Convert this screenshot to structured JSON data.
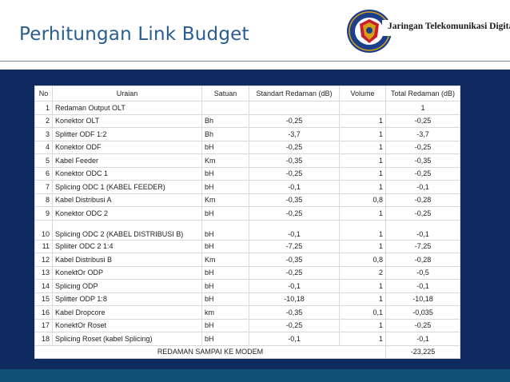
{
  "slide": {
    "title": "Perhitungan Link Budget",
    "brand_text": "Jaringan Telekomunikasi Digital"
  },
  "table": {
    "headers": [
      "No",
      "Uraian",
      "Satuan",
      "Standart Redaman (dB)",
      "Volume",
      "Total Redaman (dB)"
    ],
    "rows": [
      {
        "no": "1",
        "uraian": "Redaman Output OLT",
        "satuan": "",
        "standart": "",
        "volume": "",
        "total": "1"
      },
      {
        "no": "2",
        "uraian": "Konektor OLT",
        "satuan": "Bh",
        "standart": "-0,25",
        "volume": "1",
        "total": "-0,25"
      },
      {
        "no": "3",
        "uraian": "Splitter ODF 1:2",
        "satuan": "Bh",
        "standart": "-3,7",
        "volume": "1",
        "total": "-3,7"
      },
      {
        "no": "4",
        "uraian": "Konektor ODF",
        "satuan": "bH",
        "standart": "-0,25",
        "volume": "1",
        "total": "-0,25"
      },
      {
        "no": "5",
        "uraian": "Kabel Feeder",
        "satuan": "Km",
        "standart": "-0,35",
        "volume": "1",
        "total": "-0,35"
      },
      {
        "no": "6",
        "uraian": "Konektor ODC 1",
        "satuan": "bH",
        "standart": "-0,25",
        "volume": "1",
        "total": "-0,25"
      },
      {
        "no": "7",
        "uraian": "Splicing ODC 1 (KABEL FEEDER)",
        "satuan": "bH",
        "standart": "-0,1",
        "volume": "1",
        "total": "-0,1"
      },
      {
        "no": "8",
        "uraian": "Kabel Distribusi A",
        "satuan": "Km",
        "standart": "-0,35",
        "volume": "0,8",
        "total": "-0,28"
      },
      {
        "no": "9",
        "uraian": "Konektor ODC 2",
        "satuan": "bH",
        "standart": "-0,25",
        "volume": "1",
        "total": "-0,25"
      },
      {
        "no": "10",
        "uraian": "Splicing ODC 2 (KABEL DISTRIBUSI B)",
        "satuan": "bH",
        "standart": "-0,1",
        "volume": "1",
        "total": "-0,1"
      },
      {
        "no": "11",
        "uraian": "Spliiter ODC 2 1:4",
        "satuan": "bH",
        "standart": "-7,25",
        "volume": "1",
        "total": "-7,25"
      },
      {
        "no": "12",
        "uraian": "Kabel Distribusi B",
        "satuan": "Km",
        "standart": "-0,35",
        "volume": "0,8",
        "total": "-0,28"
      },
      {
        "no": "13",
        "uraian": "KonektOr ODP",
        "satuan": "bH",
        "standart": "-0,25",
        "volume": "2",
        "total": "-0,5"
      },
      {
        "no": "14",
        "uraian": "Splicing ODP",
        "satuan": "bH",
        "standart": "-0,1",
        "volume": "1",
        "total": "-0,1"
      },
      {
        "no": "15",
        "uraian": "Splitter ODP 1:8",
        "satuan": "bH",
        "standart": "-10,18",
        "volume": "1",
        "total": "-10,18"
      },
      {
        "no": "16",
        "uraian": "Kabel Dropcore",
        "satuan": "km",
        "standart": "-0,35",
        "volume": "0,1",
        "total": "-0,035"
      },
      {
        "no": "17",
        "uraian": "KonektOr Roset",
        "satuan": "bH",
        "standart": "-0,25",
        "volume": "1",
        "total": "-0,25"
      },
      {
        "no": "18",
        "uraian": "Splicing Roset (kabel Splicing)",
        "satuan": "bH",
        "standart": "-0,1",
        "volume": "1",
        "total": "-0,1"
      }
    ],
    "footer": {
      "label": "REDAMAN SAMPAI KE MODEM",
      "total": "-23,225"
    }
  },
  "colors": {
    "title": "#2a5d8f",
    "panel": "#0e2a5e",
    "bottom_strip": "#0f4f74",
    "logo_ring": "#1b3f8b",
    "logo_gold": "#d4a017"
  },
  "icons": {
    "logo": "university-seal-logo"
  }
}
